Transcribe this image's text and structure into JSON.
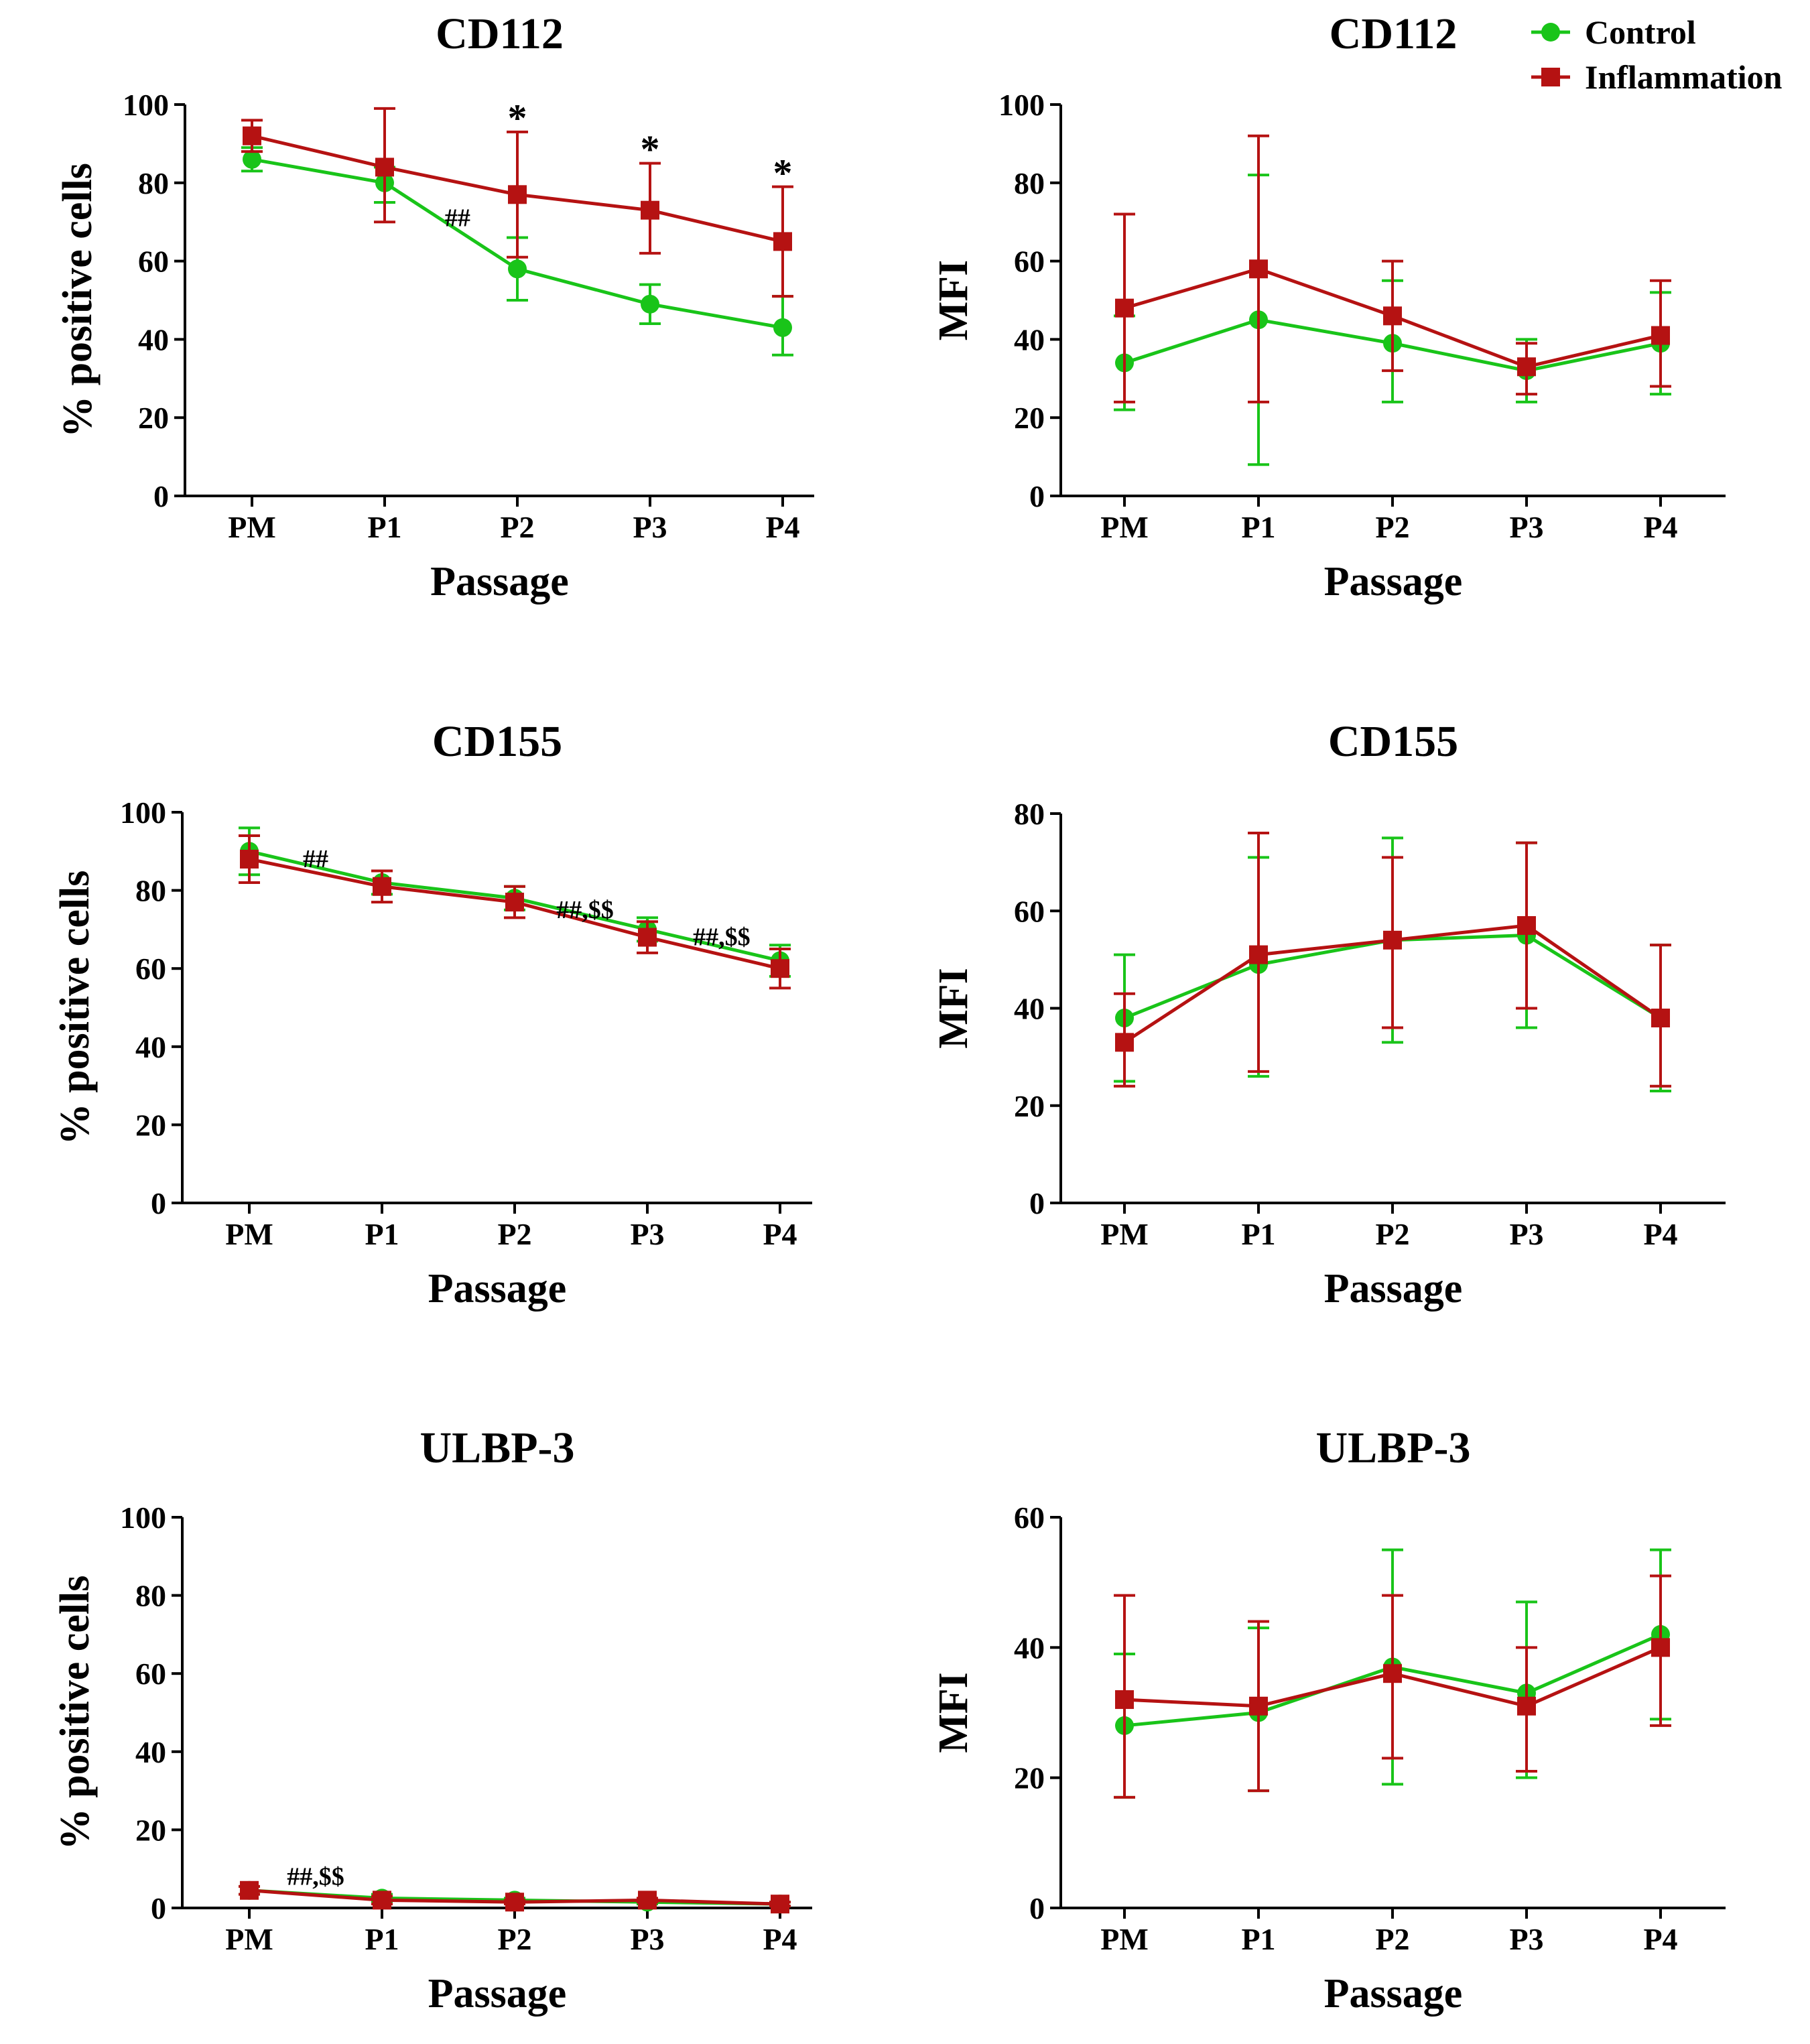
{
  "legend": {
    "entries": [
      {
        "name": "Control",
        "color": "#19c419",
        "marker": "circle"
      },
      {
        "name": "Inflammation",
        "color": "#b51212",
        "marker": "square"
      }
    ]
  },
  "chart_data": [
    {
      "type": "line",
      "title": "CD112",
      "xlabel": "Passage",
      "ylabel": "% positive cells",
      "categories": [
        "PM",
        "P1",
        "P2",
        "P3",
        "P4"
      ],
      "ylim": [
        0,
        100
      ],
      "yticks": [
        0,
        20,
        40,
        60,
        80,
        100
      ],
      "series": [
        {
          "name": "Control",
          "values": [
            86,
            80,
            58,
            49,
            43
          ],
          "err_high": [
            89,
            84,
            66,
            54,
            51
          ],
          "err_low": [
            83,
            75,
            50,
            44,
            36
          ]
        },
        {
          "name": "Inflammation",
          "values": [
            92,
            84,
            77,
            73,
            65
          ],
          "err_high": [
            96,
            99,
            93,
            85,
            79
          ],
          "err_low": [
            88,
            70,
            61,
            62,
            51
          ]
        }
      ],
      "annotations": [
        {
          "text": "*",
          "category": "P2",
          "y": 97,
          "style": "star"
        },
        {
          "text": "*",
          "category": "P3",
          "y": 89,
          "style": "star"
        },
        {
          "text": "*",
          "category": "P4",
          "y": 83,
          "style": "star"
        },
        {
          "text": "##",
          "category_pos": 1.55,
          "y": 71,
          "style": "small"
        }
      ]
    },
    {
      "type": "line",
      "title": "CD112",
      "xlabel": "Passage",
      "ylabel": "MFI",
      "categories": [
        "PM",
        "P1",
        "P2",
        "P3",
        "P4"
      ],
      "ylim": [
        0,
        100
      ],
      "yticks": [
        0,
        20,
        40,
        60,
        80,
        100
      ],
      "series": [
        {
          "name": "Control",
          "values": [
            34,
            45,
            39,
            32,
            39
          ],
          "err_high": [
            46,
            82,
            55,
            40,
            52
          ],
          "err_low": [
            22,
            8,
            24,
            24,
            26
          ]
        },
        {
          "name": "Inflammation",
          "values": [
            48,
            58,
            46,
            33,
            41
          ],
          "err_high": [
            72,
            92,
            60,
            39,
            55
          ],
          "err_low": [
            24,
            24,
            32,
            26,
            28
          ]
        }
      ],
      "annotations": []
    },
    {
      "type": "line",
      "title": "CD155",
      "xlabel": "Passage",
      "ylabel": "% positive cells",
      "categories": [
        "PM",
        "P1",
        "P2",
        "P3",
        "P4"
      ],
      "ylim": [
        0,
        100
      ],
      "yticks": [
        0,
        20,
        40,
        60,
        80,
        100
      ],
      "series": [
        {
          "name": "Control",
          "values": [
            90,
            82,
            78,
            70,
            62
          ],
          "err_high": [
            96,
            85,
            81,
            73,
            66
          ],
          "err_low": [
            84,
            79,
            75,
            67,
            58
          ]
        },
        {
          "name": "Inflammation",
          "values": [
            88,
            81,
            77,
            68,
            60
          ],
          "err_high": [
            94,
            85,
            81,
            72,
            65
          ],
          "err_low": [
            82,
            77,
            73,
            64,
            55
          ]
        }
      ],
      "annotations": [
        {
          "text": "##",
          "category_pos": 0.5,
          "y": 88,
          "style": "small"
        },
        {
          "text": "##,$$",
          "category_pos": 2.53,
          "y": 75,
          "style": "small"
        },
        {
          "text": "##,$$",
          "category_pos": 3.56,
          "y": 68,
          "style": "small"
        }
      ]
    },
    {
      "type": "line",
      "title": "CD155",
      "xlabel": "Passage",
      "ylabel": "MFI",
      "categories": [
        "PM",
        "P1",
        "P2",
        "P3",
        "P4"
      ],
      "ylim": [
        0,
        80
      ],
      "yticks": [
        0,
        20,
        40,
        60,
        80
      ],
      "series": [
        {
          "name": "Control",
          "values": [
            38,
            49,
            54,
            55,
            38
          ],
          "err_high": [
            51,
            71,
            75,
            74,
            53
          ],
          "err_low": [
            25,
            26,
            33,
            36,
            23
          ]
        },
        {
          "name": "Inflammation",
          "values": [
            33,
            51,
            54,
            57,
            38
          ],
          "err_high": [
            43,
            76,
            71,
            74,
            53
          ],
          "err_low": [
            24,
            27,
            36,
            40,
            24
          ]
        }
      ],
      "annotations": []
    },
    {
      "type": "line",
      "title": "ULBP-3",
      "xlabel": "Passage",
      "ylabel": "% positive cells",
      "categories": [
        "PM",
        "P1",
        "P2",
        "P3",
        "P4"
      ],
      "ylim": [
        0,
        100
      ],
      "yticks": [
        0,
        20,
        40,
        60,
        80,
        100
      ],
      "series": [
        {
          "name": "Control",
          "values": [
            4.5,
            2.5,
            2,
            1.5,
            1
          ],
          "err_high": [
            5.5,
            3.5,
            2.5,
            2,
            1.5
          ],
          "err_low": [
            3.5,
            1.5,
            1.5,
            1,
            0.5
          ]
        },
        {
          "name": "Inflammation",
          "values": [
            4.5,
            2,
            1.5,
            2,
            1
          ],
          "err_high": [
            5.5,
            3,
            2,
            2.5,
            1.5
          ],
          "err_low": [
            3.5,
            1,
            1,
            1.5,
            0.5
          ]
        }
      ],
      "annotations": [
        {
          "text": "##,$$",
          "category_pos": 0.5,
          "y": 8,
          "style": "small"
        }
      ]
    },
    {
      "type": "line",
      "title": "ULBP-3",
      "xlabel": "Passage",
      "ylabel": "MFI",
      "categories": [
        "PM",
        "P1",
        "P2",
        "P3",
        "P4"
      ],
      "ylim": [
        0,
        60
      ],
      "yticks": [
        0,
        20,
        40,
        60
      ],
      "series": [
        {
          "name": "Control",
          "values": [
            28,
            30,
            37,
            33,
            42
          ],
          "err_high": [
            39,
            43,
            55,
            47,
            55
          ],
          "err_low": [
            17,
            18,
            19,
            20,
            29
          ]
        },
        {
          "name": "Inflammation",
          "values": [
            32,
            31,
            36,
            31,
            40
          ],
          "err_high": [
            48,
            44,
            48,
            40,
            51
          ],
          "err_low": [
            17,
            18,
            23,
            21,
            28
          ]
        }
      ],
      "annotations": []
    }
  ]
}
